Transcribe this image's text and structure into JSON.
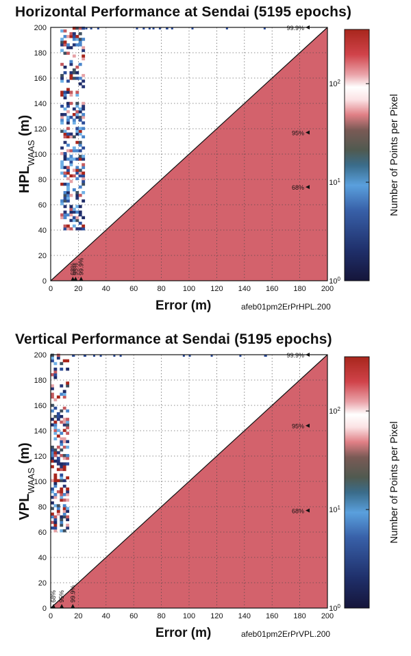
{
  "chart_data": [
    {
      "type": "heatmap",
      "title": "Horizontal Performance at Sendai (5195 epochs)",
      "xlabel": "Error (m)",
      "ylabel_main": "HPL",
      "ylabel_sub": "WAAS",
      "ylabel_units": " (m)",
      "filename": "afeb01pm2ErPrHPL.200",
      "xlim": [
        0,
        200
      ],
      "ylim": [
        0,
        200
      ],
      "xticks": [
        "0",
        "20",
        "40",
        "60",
        "80",
        "100",
        "120",
        "140",
        "160",
        "180",
        "200"
      ],
      "yticks": [
        "0",
        "20",
        "40",
        "60",
        "80",
        "100",
        "120",
        "140",
        "160",
        "180",
        "200"
      ],
      "grid": true,
      "colorbar": {
        "label": "Number of Points per Pixel",
        "scale": "log",
        "ticks": [
          {
            "base": "10",
            "exp": "0"
          },
          {
            "base": "10",
            "exp": "1"
          },
          {
            "base": "10",
            "exp": "2"
          }
        ]
      },
      "error_markers": [
        {
          "label": "68%",
          "x": 16
        },
        {
          "label": "95%",
          "x": 18
        },
        {
          "label": "99.9%",
          "x": 22
        }
      ],
      "pl_markers": [
        {
          "label": "99.9%",
          "y": 200
        },
        {
          "label": "95%",
          "y": 117
        },
        {
          "label": "68%",
          "y": 74
        }
      ],
      "point_cluster": {
        "x_range": [
          7,
          23
        ],
        "y_range": [
          40,
          200
        ]
      },
      "bound_region": "Error > PL"
    },
    {
      "type": "heatmap",
      "title": "Vertical Performance at Sendai (5195 epochs)",
      "xlabel": "Error (m)",
      "ylabel_main": "VPL",
      "ylabel_sub": "WAAS",
      "ylabel_units": " (m)",
      "filename": "afeb01pm2ErPrVPL.200",
      "xlim": [
        0,
        200
      ],
      "ylim": [
        0,
        200
      ],
      "xticks": [
        "0",
        "20",
        "40",
        "60",
        "80",
        "100",
        "120",
        "140",
        "160",
        "180",
        "200"
      ],
      "yticks": [
        "0",
        "20",
        "40",
        "60",
        "80",
        "100",
        "120",
        "140",
        "160",
        "180",
        "200"
      ],
      "grid": true,
      "colorbar": {
        "label": "Number of Points per Pixel",
        "scale": "log",
        "ticks": [
          {
            "base": "10",
            "exp": "0"
          },
          {
            "base": "10",
            "exp": "1"
          },
          {
            "base": "10",
            "exp": "2"
          }
        ]
      },
      "error_markers": [
        {
          "label": "68%",
          "x": 2
        },
        {
          "label": "95%",
          "x": 8
        },
        {
          "label": "99.9%",
          "x": 16
        }
      ],
      "pl_markers": [
        {
          "label": "99.9%",
          "y": 200
        },
        {
          "label": "95%",
          "y": 144
        },
        {
          "label": "68%",
          "y": 77
        }
      ],
      "point_cluster": {
        "x_range": [
          0,
          12
        ],
        "y_range": [
          60,
          200
        ]
      },
      "bound_region": "Error > PL"
    }
  ]
}
